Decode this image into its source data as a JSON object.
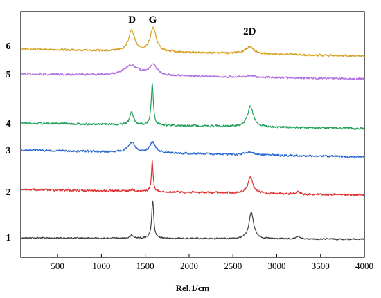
{
  "chart_data": {
    "type": "line",
    "title": "",
    "xlabel": "Rel.1/cm",
    "ylabel": "",
    "xlim": [
      80,
      4000
    ],
    "xticks": [
      500,
      1000,
      1500,
      2000,
      2500,
      3000,
      3500,
      4000
    ],
    "grid": false,
    "y_ticks_shown": false,
    "peak_labels": [
      {
        "text": "D",
        "x": 1350
      },
      {
        "text": "G",
        "x": 1585
      },
      {
        "text": "2D",
        "x": 2690
      }
    ],
    "series": [
      {
        "row_label": "1",
        "color": "#404040",
        "peaks": [
          {
            "x": 1350,
            "height": 0.08,
            "width": 25
          },
          {
            "x": 1585,
            "height": 1.0,
            "width": 14
          },
          {
            "x": 2710,
            "height": 0.7,
            "width": 32
          },
          {
            "x": 3245,
            "height": 0.08,
            "width": 15
          }
        ],
        "noise": "low"
      },
      {
        "row_label": "2",
        "color": "#e03030",
        "peaks": [
          {
            "x": 1350,
            "height": 0.05,
            "width": 25
          },
          {
            "x": 1580,
            "height": 0.72,
            "width": 12
          },
          {
            "x": 2700,
            "height": 0.38,
            "width": 35
          },
          {
            "x": 3240,
            "height": 0.05,
            "width": 15
          }
        ],
        "noise": "medium"
      },
      {
        "row_label": "3",
        "color": "#2a6ad0",
        "peaks": [
          {
            "x": 1345,
            "height": 0.38,
            "width": 45
          },
          {
            "x": 1585,
            "height": 0.4,
            "width": 38
          },
          {
            "x": 2690,
            "height": 0.1,
            "width": 60
          }
        ],
        "noise": "medium"
      },
      {
        "row_label": "4",
        "color": "#22a05a",
        "peaks": [
          {
            "x": 1345,
            "height": 0.35,
            "width": 25
          },
          {
            "x": 1580,
            "height": 1.1,
            "width": 15
          },
          {
            "x": 2700,
            "height": 0.55,
            "width": 40
          }
        ],
        "noise": "medium"
      },
      {
        "row_label": "5",
        "color": "#b070e0",
        "peaks": [
          {
            "x": 1340,
            "height": 0.3,
            "width": 100
          },
          {
            "x": 1590,
            "height": 0.3,
            "width": 55
          },
          {
            "x": 2690,
            "height": 0.04,
            "width": 60
          }
        ],
        "noise": "medium"
      },
      {
        "row_label": "6",
        "color": "#d4a020",
        "peaks": [
          {
            "x": 1345,
            "height": 0.62,
            "width": 42
          },
          {
            "x": 1590,
            "height": 0.72,
            "width": 40
          },
          {
            "x": 2690,
            "height": 0.2,
            "width": 55
          }
        ],
        "noise": "medium"
      }
    ]
  }
}
